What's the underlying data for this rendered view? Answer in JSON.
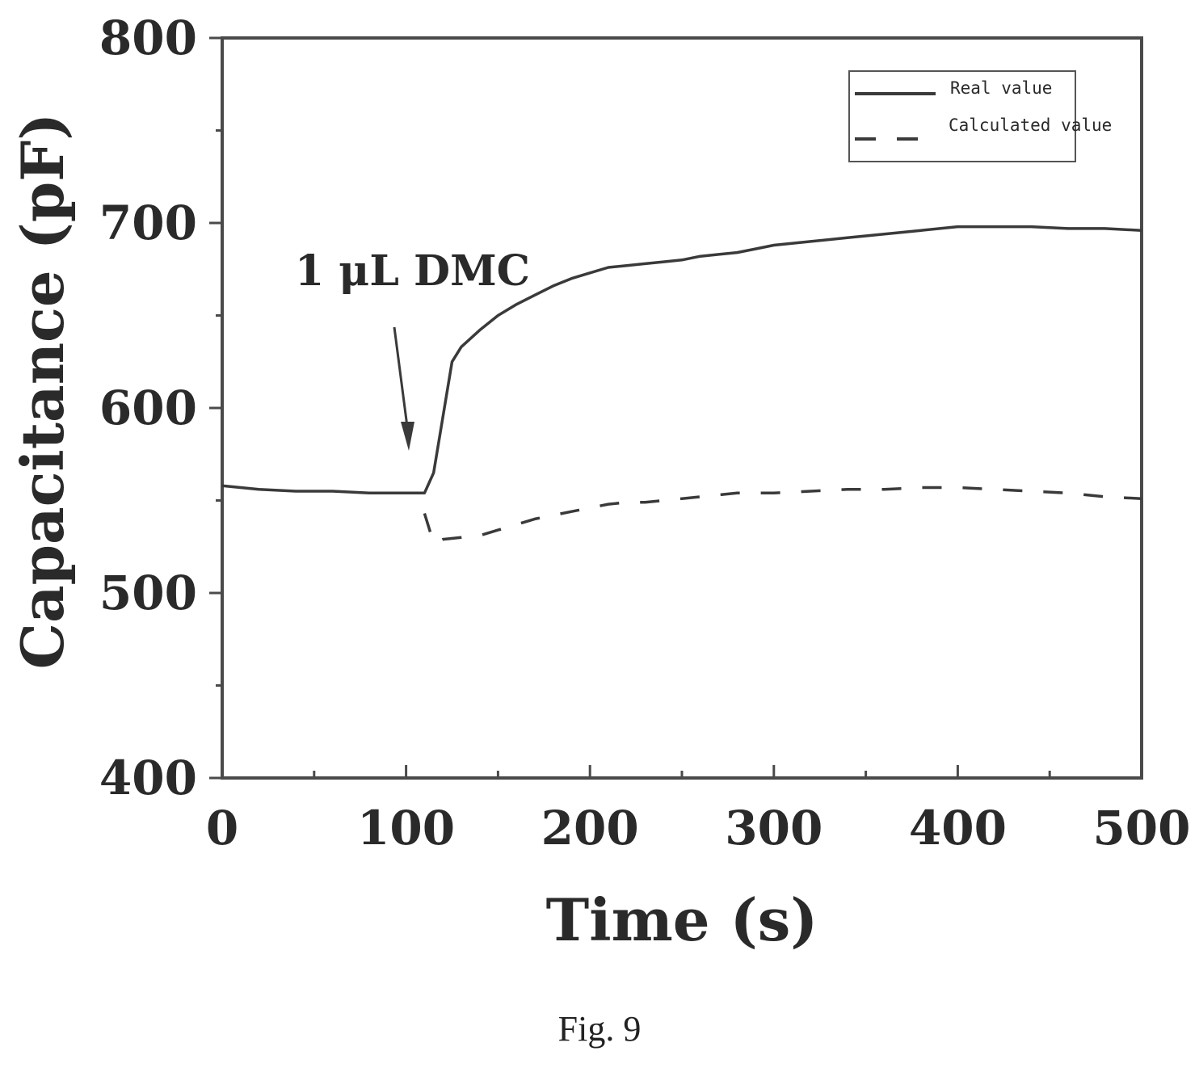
{
  "caption": "Fig. 9",
  "chart_data": {
    "type": "line",
    "xlabel": "Time (s)",
    "ylabel": "Capacitance (pF)",
    "xlim": [
      0,
      500
    ],
    "ylim": [
      400,
      800
    ],
    "xticks": [
      0,
      100,
      200,
      300,
      400,
      500
    ],
    "yticks": [
      400,
      500,
      600,
      700,
      800
    ],
    "grid": false,
    "legend_position": "top-right",
    "annotation": {
      "text": "1 μL DMC",
      "points_to_x": 105
    },
    "series": [
      {
        "name": "Real value",
        "style": "solid",
        "color": "#3a3a3a",
        "x": [
          0,
          20,
          40,
          60,
          80,
          100,
          110,
          115,
          120,
          125,
          130,
          140,
          150,
          160,
          170,
          180,
          190,
          200,
          210,
          220,
          230,
          240,
          250,
          260,
          270,
          280,
          290,
          300,
          320,
          340,
          360,
          380,
          400,
          420,
          440,
          460,
          480,
          500
        ],
        "y": [
          558,
          556,
          555,
          555,
          554,
          554,
          554,
          565,
          595,
          625,
          633,
          642,
          650,
          656,
          661,
          666,
          670,
          673,
          676,
          677,
          678,
          679,
          680,
          682,
          683,
          684,
          686,
          688,
          690,
          692,
          694,
          696,
          698,
          698,
          698,
          697,
          697,
          696
        ]
      },
      {
        "name": "Calculated value",
        "style": "dashed",
        "color": "#3a3a3a",
        "x": [
          110,
          115,
          120,
          130,
          140,
          150,
          160,
          170,
          180,
          190,
          200,
          210,
          220,
          230,
          240,
          250,
          260,
          270,
          280,
          290,
          300,
          320,
          340,
          360,
          380,
          400,
          420,
          440,
          460,
          480,
          500
        ],
        "y": [
          543,
          527,
          529,
          530,
          531,
          534,
          537,
          540,
          542,
          544,
          546,
          548,
          549,
          549,
          550,
          551,
          552,
          553,
          554,
          554,
          554,
          555,
          556,
          556,
          557,
          557,
          556,
          555,
          554,
          552,
          551
        ]
      }
    ]
  }
}
